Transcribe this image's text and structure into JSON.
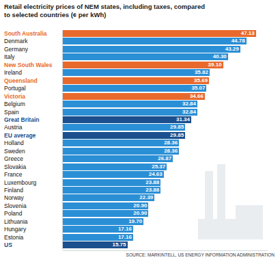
{
  "chart_data": {
    "type": "bar",
    "orientation": "horizontal",
    "title": "Retail electricity prices of NEM states, including taxes, compared to selected countries (¢ per kWh)",
    "source": "SOURCE: MARKINTELL, US ENERGY INFORMATION ADMINISTRATION",
    "categories": [
      "South Australia",
      "Denmark",
      "Germany",
      "Italy",
      "New South Wales",
      "Ireland",
      "Queensland",
      "Portugal",
      "Victoria",
      "Belgium",
      "Spain",
      "Great Britain",
      "Austria",
      "EU average",
      "Holland",
      "Sweden",
      "Greece",
      "Slovakia",
      "France",
      "Luxembourg",
      "Finland",
      "Norway",
      "Slovenia",
      "Poland",
      "Lithuania",
      "Hungary",
      "Estonia",
      "US"
    ],
    "values": [
      47.13,
      44.78,
      43.29,
      40.3,
      39.1,
      35.82,
      35.69,
      35.07,
      34.66,
      32.84,
      32.84,
      31.34,
      29.85,
      29.85,
      28.36,
      28.36,
      26.87,
      25.37,
      24.63,
      23.88,
      23.88,
      22.39,
      20.9,
      20.9,
      19.7,
      17.16,
      17.16,
      15.75
    ],
    "value_labels": [
      "47.13",
      "44.78",
      "43.29",
      "40.30",
      "39.10",
      "35.82",
      "35.69",
      "35.07",
      "34.66",
      "32.84",
      "32.84",
      "31.34",
      "29.85",
      "29.85",
      "28.36",
      "28.36",
      "26.87",
      "25.37",
      "24.63",
      "23.88",
      "23.88",
      "22.39",
      "20.90",
      "20.90",
      "19.70",
      "17.16",
      "17.16",
      "15.75"
    ],
    "colors": [
      "#e8692c",
      "#2b8fd6",
      "#2b8fd6",
      "#2b8fd6",
      "#e8692c",
      "#2b8fd6",
      "#e8692c",
      "#2b8fd6",
      "#e8692c",
      "#2b8fd6",
      "#2b8fd6",
      "#1b4f8e",
      "#2b8fd6",
      "#1b4f8e",
      "#2b8fd6",
      "#2b8fd6",
      "#2b8fd6",
      "#2b8fd6",
      "#2b8fd6",
      "#2b8fd6",
      "#2b8fd6",
      "#2b8fd6",
      "#2b8fd6",
      "#2b8fd6",
      "#2b8fd6",
      "#2b8fd6",
      "#2b8fd6",
      "#1b4f8e"
    ],
    "xlim": [
      0,
      50
    ],
    "data_labels": true,
    "tick_labels": "y",
    "grid": false
  }
}
